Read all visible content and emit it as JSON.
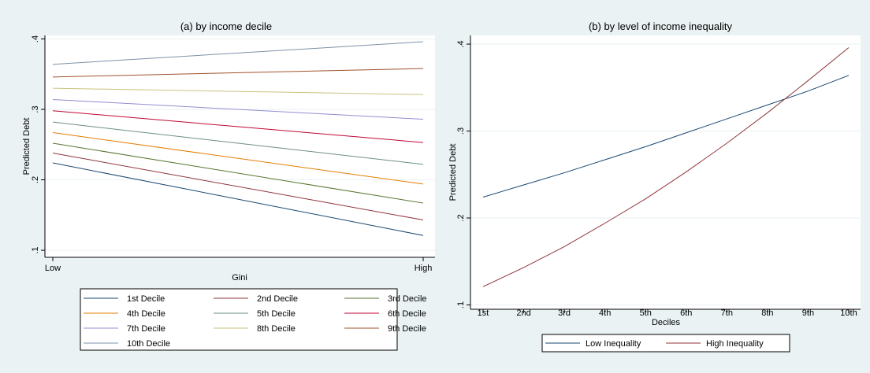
{
  "chart_data": [
    {
      "type": "line",
      "title": "(a) by income decile",
      "xlabel": "Gini",
      "ylabel": "Predicted Debt",
      "x": [
        "Low",
        "High"
      ],
      "xlim": [
        0,
        1
      ],
      "ylim": [
        0.09,
        0.405
      ],
      "yticks": [
        ".1",
        ".2",
        ".3",
        ".4"
      ],
      "grid": "horizontal",
      "legend_position": "bottom",
      "series": [
        {
          "name": "1st Decile",
          "color": "#1a476f",
          "values": [
            0.224,
            0.121
          ]
        },
        {
          "name": "2nd Decile",
          "color": "#90353b",
          "values": [
            0.238,
            0.143
          ]
        },
        {
          "name": "3rd Decile",
          "color": "#55752f",
          "values": [
            0.252,
            0.167
          ]
        },
        {
          "name": "4th Decile",
          "color": "#e37e00",
          "values": [
            0.267,
            0.194
          ]
        },
        {
          "name": "5th Decile",
          "color": "#6e8e84",
          "values": [
            0.282,
            0.222
          ]
        },
        {
          "name": "6th Decile",
          "color": "#c10534",
          "values": [
            0.298,
            0.253
          ]
        },
        {
          "name": "7th Decile",
          "color": "#938dd2",
          "values": [
            0.314,
            0.286
          ]
        },
        {
          "name": "8th Decile",
          "color": "#cac27e",
          "values": [
            0.33,
            0.321
          ]
        },
        {
          "name": "9th Decile",
          "color": "#a0522d",
          "values": [
            0.346,
            0.358
          ]
        },
        {
          "name": "10th Decile",
          "color": "#7b92a8",
          "values": [
            0.364,
            0.396
          ]
        }
      ]
    },
    {
      "type": "line",
      "title": "(b) by level of income inequality",
      "xlabel": "Deciles",
      "ylabel": "Predicted Debt",
      "categories": [
        "1st",
        "2nd",
        "3rd",
        "4th",
        "5th",
        "6th",
        "7th",
        "8th",
        "9th",
        "10th"
      ],
      "ylim": [
        0.095,
        0.41
      ],
      "yticks": [
        ".1",
        ".2",
        ".3",
        ".4"
      ],
      "grid": "horizontal",
      "legend_position": "bottom",
      "series": [
        {
          "name": "Low Inequality",
          "color": "#1a476f",
          "values": [
            0.224,
            0.238,
            0.252,
            0.267,
            0.282,
            0.298,
            0.314,
            0.33,
            0.346,
            0.364
          ]
        },
        {
          "name": "High Inequality",
          "color": "#90353b",
          "values": [
            0.121,
            0.143,
            0.167,
            0.194,
            0.222,
            0.253,
            0.286,
            0.321,
            0.358,
            0.396
          ]
        }
      ]
    }
  ]
}
